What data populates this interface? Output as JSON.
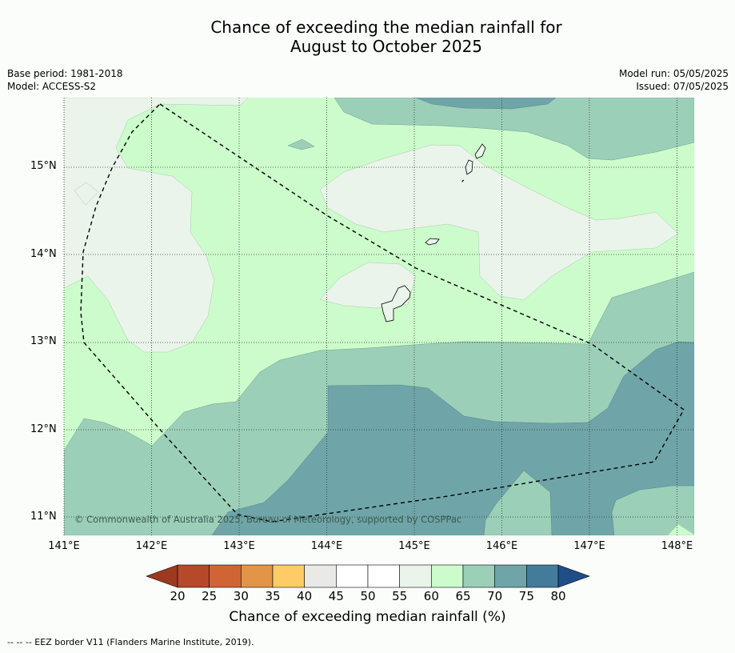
{
  "title": "Chance of exceeding the median rainfall for\nAugust to October 2025",
  "meta_left": {
    "base_period": "Base period: 1981-2018",
    "model": "Model: ACCESS-S2"
  },
  "meta_right": {
    "model_run": "Model run: 05/05/2025",
    "issued": "Issued: 07/05/2025"
  },
  "map": {
    "lon_range": [
      141.0,
      148.2
    ],
    "lat_range": [
      10.8,
      15.8
    ],
    "lat_labels": [
      "15°N",
      "14°N",
      "13°N",
      "12°N",
      "11°N"
    ],
    "lon_labels": [
      "141°E",
      "142°E",
      "143°E",
      "144°E",
      "145°E",
      "146°E",
      "147°E",
      "148°E"
    ],
    "copyright": "© Commonwealth of Australia 2025, Bureau of Meteorology, supported by COSPPac",
    "gridlines": true,
    "eez_border": "dashed"
  },
  "colorbar": {
    "ticks": [
      "20",
      "25",
      "30",
      "35",
      "40",
      "45",
      "50",
      "55",
      "60",
      "65",
      "70",
      "75",
      "80"
    ],
    "colors": {
      "below_20": "#9b3a1e",
      "20_25": "#b5492a",
      "25_30": "#cf6535",
      "30_35": "#e29447",
      "35_40": "#fdcc66",
      "40_45": "#e9e9e6",
      "45_50": "#ffffff",
      "50_55": "#ffffff",
      "55_60": "#eaf4ea",
      "60_65": "#ccfccb",
      "65_70": "#9ccfb8",
      "70_75": "#6fa5a8",
      "75_80": "#437c9b",
      "above_80": "#1f4e87"
    },
    "label": "Chance of exceeding median rainfall (%)"
  },
  "source_note": "-- -- -- EEZ border V11 (Flanders Marine Institute, 2019)."
}
